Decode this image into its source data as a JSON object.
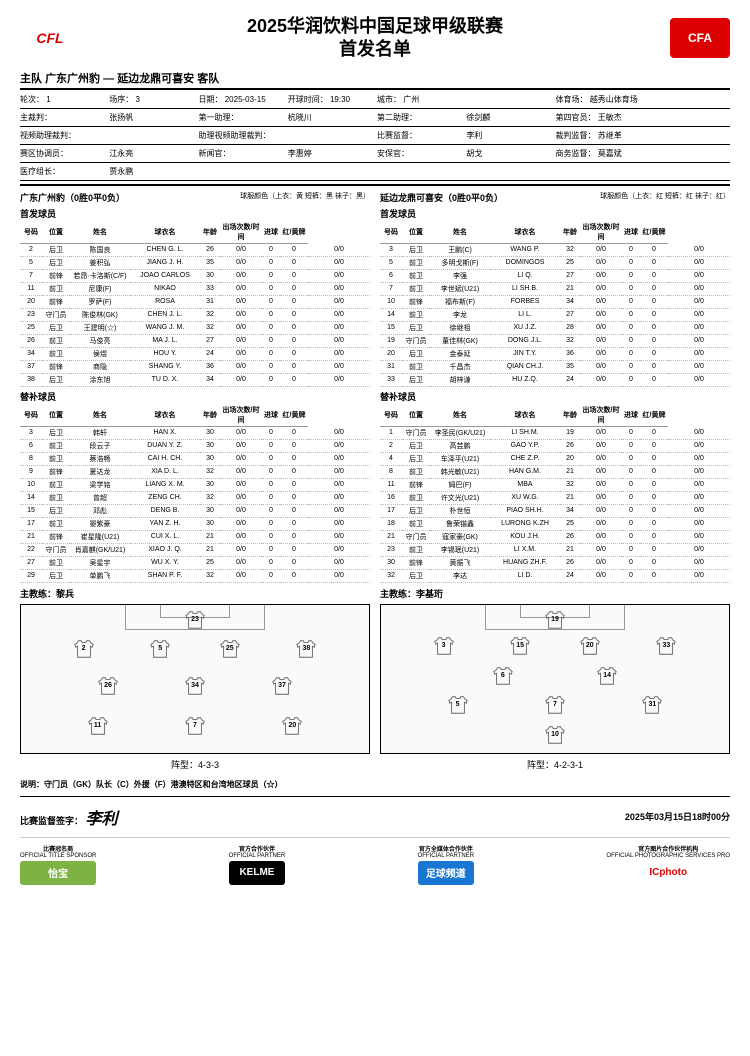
{
  "title_l1": "2025华润饮料中国足球甲级联赛",
  "title_l2": "首发名单",
  "logo_left": "CFL",
  "logo_right": "CFA",
  "home_label": "主队",
  "home_team": "广东广州豹",
  "vs": "—",
  "away_team": "延边龙鼎可喜安",
  "away_label": "客队",
  "info": [
    [
      "轮次：",
      "1",
      "场序：",
      "3",
      "日期：",
      "2025-03-15",
      "开球时间：",
      "19:30",
      "城市：",
      "广州",
      "",
      "",
      "体育场：",
      "越秀山体育场"
    ],
    [
      "主裁判：",
      "",
      "张扬帆",
      "",
      "第一助理：",
      "",
      "杭晓川",
      "",
      "第二助理：",
      "",
      "徐剑麟",
      "",
      "第四官员：",
      "王敏杰"
    ],
    [
      "视频助理裁判：",
      "",
      "",
      "",
      "助理视频助理裁判：",
      "",
      "",
      "",
      "比赛监督：",
      "",
      "李利",
      "",
      "裁判监督：",
      "苏继革"
    ],
    [
      "赛区协调员：",
      "",
      "江永亮",
      "",
      "新闻官：",
      "",
      "李惠婷",
      "",
      "安保官：",
      "",
      "胡戈",
      "",
      "商务监督：",
      "莫嘉斌"
    ],
    [
      "医疗组长：",
      "",
      "贾永鹏",
      "",
      "",
      "",
      "",
      "",
      "",
      "",
      "",
      "",
      "",
      ""
    ]
  ],
  "home": {
    "name": "广东广州豹（0胜0平0负）",
    "jersey": "球服颜色（上衣：黄 短裤：黑 袜子：黑）",
    "coach_label": "主教练：",
    "coach": "黎兵",
    "formation_label": "阵型：",
    "formation": "4-3-3",
    "starters": [
      [
        "2",
        "后卫",
        "陈国良",
        "CHEN G. L.",
        "26",
        "0/0",
        "0",
        "0",
        "0/0"
      ],
      [
        "5",
        "后卫",
        "姜积弘",
        "JIANG J. H.",
        "35",
        "0/0",
        "0",
        "0",
        "0/0"
      ],
      [
        "7",
        "前锋",
        "若昂·卡洛斯(C/F)",
        "JOAO CARLOS",
        "30",
        "0/0",
        "0",
        "0",
        "0/0"
      ],
      [
        "11",
        "前卫",
        "尼康(F)",
        "NIKAO",
        "33",
        "0/0",
        "0",
        "0",
        "0/0"
      ],
      [
        "20",
        "前锋",
        "罗萨(F)",
        "ROSA",
        "31",
        "0/0",
        "0",
        "0",
        "0/0"
      ],
      [
        "23",
        "守门员",
        "陈俊林(GK)",
        "CHEN J. L.",
        "32",
        "0/0",
        "0",
        "0",
        "0/0"
      ],
      [
        "25",
        "后卫",
        "王建明(☆)",
        "WANG J. M.",
        "32",
        "0/0",
        "0",
        "0",
        "0/0"
      ],
      [
        "26",
        "前卫",
        "马俊亮",
        "MA J. L.",
        "27",
        "0/0",
        "0",
        "0",
        "0/0"
      ],
      [
        "34",
        "前卫",
        "侯煜",
        "HOU Y.",
        "24",
        "0/0",
        "0",
        "0",
        "0/0"
      ],
      [
        "37",
        "前锋",
        "商隐",
        "SHANG Y.",
        "36",
        "0/0",
        "0",
        "0",
        "0/0"
      ],
      [
        "38",
        "后卫",
        "涂东旭",
        "TU D. X.",
        "34",
        "0/0",
        "0",
        "0",
        "0/0"
      ]
    ],
    "subs": [
      [
        "3",
        "后卫",
        "韩轩",
        "HAN X.",
        "30",
        "0/0",
        "0",
        "0",
        "0/0"
      ],
      [
        "6",
        "前卫",
        "段云子",
        "DUAN Y. Z.",
        "30",
        "0/0",
        "0",
        "0",
        "0/0"
      ],
      [
        "8",
        "前卫",
        "蔡浩畅",
        "CAI H. CH.",
        "30",
        "0/0",
        "0",
        "0",
        "0/0"
      ],
      [
        "9",
        "前锋",
        "夏达龙",
        "XIA D. L.",
        "32",
        "0/0",
        "0",
        "0",
        "0/0"
      ],
      [
        "10",
        "前卫",
        "梁学铭",
        "LIANG X. M.",
        "30",
        "0/0",
        "0",
        "0",
        "0/0"
      ],
      [
        "14",
        "前卫",
        "曾超",
        "ZENG CH.",
        "32",
        "0/0",
        "0",
        "0",
        "0/0"
      ],
      [
        "15",
        "后卫",
        "邓彪",
        "DENG B.",
        "30",
        "0/0",
        "0",
        "0",
        "0/0"
      ],
      [
        "17",
        "前卫",
        "晏紫豪",
        "YAN Z. H.",
        "30",
        "0/0",
        "0",
        "0",
        "0/0"
      ],
      [
        "21",
        "前锋",
        "崔星隆(U21)",
        "CUI X. L.",
        "21",
        "0/0",
        "0",
        "0",
        "0/0"
      ],
      [
        "22",
        "守门员",
        "肖嘉麒(GK/U21)",
        "XIAO J. Q.",
        "21",
        "0/0",
        "0",
        "0",
        "0/0"
      ],
      [
        "27",
        "前卫",
        "吴星宇",
        "WU X. Y.",
        "25",
        "0/0",
        "0",
        "0",
        "0/0"
      ],
      [
        "29",
        "后卫",
        "单鹏飞",
        "SHAN P. F.",
        "32",
        "0/0",
        "0",
        "0",
        "0/0"
      ]
    ],
    "pitch": [
      [
        "23",
        50,
        10
      ],
      [
        "2",
        18,
        30
      ],
      [
        "5",
        40,
        30
      ],
      [
        "25",
        60,
        30
      ],
      [
        "38",
        82,
        30
      ],
      [
        "26",
        25,
        55
      ],
      [
        "34",
        50,
        55
      ],
      [
        "37",
        75,
        55
      ],
      [
        "11",
        22,
        82
      ],
      [
        "7",
        50,
        82
      ],
      [
        "20",
        78,
        82
      ]
    ]
  },
  "away": {
    "name": "延边龙鼎可喜安（0胜0平0负）",
    "jersey": "球服颜色（上衣：红 短裤：红 袜子：红）",
    "coach_label": "主教练：",
    "coach": "李基珩",
    "formation_label": "阵型：",
    "formation": "4-2-3-1",
    "starters": [
      [
        "3",
        "后卫",
        "王鹏(C)",
        "WANG P.",
        "32",
        "0/0",
        "0",
        "0",
        "0/0"
      ],
      [
        "5",
        "前卫",
        "多明戈斯(F)",
        "DOMINGOS",
        "25",
        "0/0",
        "0",
        "0",
        "0/0"
      ],
      [
        "6",
        "前卫",
        "李强",
        "LI Q.",
        "27",
        "0/0",
        "0",
        "0",
        "0/0"
      ],
      [
        "7",
        "前卫",
        "李世斌(U21)",
        "LI SH.B.",
        "21",
        "0/0",
        "0",
        "0",
        "0/0"
      ],
      [
        "10",
        "前锋",
        "福布斯(F)",
        "FORBES",
        "34",
        "0/0",
        "0",
        "0",
        "0/0"
      ],
      [
        "14",
        "前卫",
        "李龙",
        "LI L.",
        "27",
        "0/0",
        "0",
        "0",
        "0/0"
      ],
      [
        "15",
        "后卫",
        "徐继祖",
        "XU J.Z.",
        "28",
        "0/0",
        "0",
        "0",
        "0/0"
      ],
      [
        "19",
        "守门员",
        "董佳林(GK)",
        "DONG J.L.",
        "32",
        "0/0",
        "0",
        "0",
        "0/0"
      ],
      [
        "20",
        "后卫",
        "金泰延",
        "JIN T.Y.",
        "36",
        "0/0",
        "0",
        "0",
        "0/0"
      ],
      [
        "31",
        "前卫",
        "千昌杰",
        "QIAN CH.J.",
        "35",
        "0/0",
        "0",
        "0",
        "0/0"
      ],
      [
        "33",
        "后卫",
        "胡梓谦",
        "HU Z.Q.",
        "24",
        "0/0",
        "0",
        "0",
        "0/0"
      ]
    ],
    "subs": [
      [
        "1",
        "守门员",
        "李圣民(GK/U21)",
        "LI SH.M.",
        "19",
        "0/0",
        "0",
        "0",
        "0/0"
      ],
      [
        "2",
        "后卫",
        "高芸鹏",
        "GAO Y.P.",
        "26",
        "0/0",
        "0",
        "0",
        "0/0"
      ],
      [
        "4",
        "后卫",
        "车泽平(U21)",
        "CHE Z.P.",
        "20",
        "0/0",
        "0",
        "0",
        "0/0"
      ],
      [
        "8",
        "前卫",
        "韩光敏(U21)",
        "HAN G.M.",
        "21",
        "0/0",
        "0",
        "0",
        "0/0"
      ],
      [
        "11",
        "前锋",
        "姆巴(F)",
        "MBA",
        "32",
        "0/0",
        "0",
        "0",
        "0/0"
      ],
      [
        "16",
        "前卫",
        "许文光(U21)",
        "XU W.G.",
        "21",
        "0/0",
        "0",
        "0",
        "0/0"
      ],
      [
        "17",
        "后卫",
        "朴世恒",
        "PIAO SH.H.",
        "34",
        "0/0",
        "0",
        "0",
        "0/0"
      ],
      [
        "18",
        "前卫",
        "鲁荣锴鑫",
        "LURONG K.ZH",
        "25",
        "0/0",
        "0",
        "0",
        "0/0"
      ],
      [
        "21",
        "守门员",
        "寇家豪(GK)",
        "KOU J.H.",
        "26",
        "0/0",
        "0",
        "0",
        "0/0"
      ],
      [
        "23",
        "前卫",
        "李锡珉(U21)",
        "LI X.M.",
        "21",
        "0/0",
        "0",
        "0",
        "0/0"
      ],
      [
        "30",
        "前锋",
        "黄振飞",
        "HUANG ZH.F.",
        "26",
        "0/0",
        "0",
        "0",
        "0/0"
      ],
      [
        "32",
        "后卫",
        "李达",
        "LI D.",
        "24",
        "0/0",
        "0",
        "0",
        "0/0"
      ]
    ],
    "pitch": [
      [
        "19",
        50,
        10
      ],
      [
        "3",
        18,
        28
      ],
      [
        "15",
        40,
        28
      ],
      [
        "20",
        60,
        28
      ],
      [
        "33",
        82,
        28
      ],
      [
        "6",
        35,
        48
      ],
      [
        "14",
        65,
        48
      ],
      [
        "5",
        22,
        68
      ],
      [
        "7",
        50,
        68
      ],
      [
        "31",
        78,
        68
      ],
      [
        "10",
        50,
        88
      ]
    ]
  },
  "cols": [
    "号码",
    "位置",
    "姓名",
    "球衣名",
    "年龄",
    "出场次数/时间",
    "进球",
    "红/黄牌"
  ],
  "cols_sub": [
    "号码",
    "位置",
    "姓名",
    "球衣名",
    "年龄",
    "出场次数/时间",
    "进球",
    "红/黄牌"
  ],
  "starters_label": "首发球员",
  "subs_label": "替补球员",
  "legend": "说明：守门员（GK）队长（C）外援（F）港澳特区和台湾地区球员（☆）",
  "sign_label": "比赛监督签字：",
  "signature": "李利",
  "timestamp": "2025年03月15日18时00分",
  "sponsors": [
    {
      "t": "比赛冠名商",
      "e": "OFFICIAL TITLE SPONSOR",
      "n": "怡宝",
      "c": "sl1"
    },
    {
      "t": "官方合作伙伴",
      "e": "OFFICIAL PARTNER",
      "n": "KELME",
      "c": "sl2"
    },
    {
      "t": "官方全媒体合作伙伴",
      "e": "OFFICIAL PARTNER",
      "n": "足球频道",
      "c": "sl3"
    },
    {
      "t": "官方图片合作伙伴机构",
      "e": "OFFICIAL PHOTOGRAPHIC SERVICES PRO",
      "n": "ICphoto",
      "c": "sl4"
    }
  ]
}
